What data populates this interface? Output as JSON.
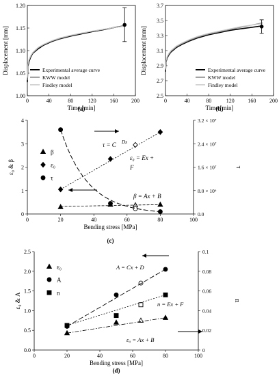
{
  "chart_data": [
    {
      "id": "a",
      "panel_label": "(a)",
      "type": "line",
      "xlabel": "Time [min]",
      "ylabel": "Displacement [mm]",
      "xlim": [
        0,
        200
      ],
      "ylim": [
        1.0,
        1.2
      ],
      "xticks": [
        0,
        40,
        80,
        120,
        160,
        200
      ],
      "yticks": [
        "1.00",
        "1.05",
        "1.10",
        "1.15",
        "1.20"
      ],
      "legend_position": "bottom-left",
      "series": [
        {
          "name": "Experimental average curve",
          "color": "#000000",
          "x": [
            0,
            1,
            3,
            6,
            10,
            20,
            30,
            45,
            60,
            80,
            100,
            120,
            140,
            160,
            180
          ],
          "y": [
            1.03,
            1.065,
            1.075,
            1.085,
            1.094,
            1.104,
            1.112,
            1.12,
            1.126,
            1.132,
            1.137,
            1.142,
            1.146,
            1.151,
            1.155
          ]
        },
        {
          "name": "KWW model",
          "color": "#8c8c8c",
          "x": [
            0,
            1,
            3,
            6,
            10,
            20,
            30,
            45,
            60,
            80,
            100,
            120,
            140,
            160,
            180
          ],
          "y": [
            1.035,
            1.068,
            1.078,
            1.087,
            1.095,
            1.106,
            1.113,
            1.121,
            1.127,
            1.133,
            1.138,
            1.143,
            1.147,
            1.151,
            1.155
          ]
        },
        {
          "name": "Findley model",
          "color": "#c8c8c8",
          "x": [
            0,
            1,
            3,
            6,
            10,
            20,
            30,
            45,
            60,
            80,
            100,
            120,
            140,
            160,
            180
          ],
          "y": [
            1.04,
            1.07,
            1.08,
            1.088,
            1.096,
            1.107,
            1.114,
            1.122,
            1.128,
            1.134,
            1.139,
            1.143,
            1.147,
            1.151,
            1.154
          ]
        }
      ],
      "endpoint": {
        "x": 180,
        "y": 1.157,
        "error_low": 1.12,
        "error_high": 1.195
      }
    },
    {
      "id": "b",
      "panel_label": "(b)",
      "type": "line",
      "xlabel": "Time [min]",
      "ylabel": "Displacement [mm]",
      "xlim": [
        0,
        200
      ],
      "ylim": [
        2.5,
        3.7
      ],
      "xticks": [
        0,
        40,
        80,
        120,
        160,
        200
      ],
      "yticks": [
        "2.5",
        "2.7",
        "2.9",
        "3.1",
        "3.3",
        "3.5",
        "3.7"
      ],
      "legend_position": "bottom-right",
      "series": [
        {
          "name": "Experimental average curve",
          "color": "#000000",
          "x": [
            0,
            1,
            3,
            6,
            10,
            20,
            30,
            45,
            60,
            80,
            100,
            120,
            140,
            160,
            180
          ],
          "y": [
            2.82,
            2.95,
            3.0,
            3.04,
            3.08,
            3.14,
            3.18,
            3.23,
            3.27,
            3.31,
            3.34,
            3.37,
            3.39,
            3.41,
            3.43
          ]
        },
        {
          "name": "KWW model",
          "color": "#8c8c8c",
          "x": [
            0,
            1,
            3,
            6,
            10,
            20,
            30,
            45,
            60,
            80,
            100,
            120,
            140,
            160,
            180
          ],
          "y": [
            2.84,
            2.96,
            3.01,
            3.05,
            3.09,
            3.15,
            3.19,
            3.24,
            3.28,
            3.32,
            3.35,
            3.38,
            3.41,
            3.44,
            3.47
          ]
        },
        {
          "name": "Findley model",
          "color": "#c8c8c8",
          "x": [
            0,
            1,
            3,
            6,
            10,
            20,
            30,
            45,
            60,
            80,
            100,
            120,
            140,
            160,
            180
          ],
          "y": [
            2.86,
            2.97,
            3.02,
            3.06,
            3.1,
            3.16,
            3.2,
            3.25,
            3.29,
            3.33,
            3.36,
            3.39,
            3.42,
            3.44,
            3.46
          ]
        }
      ],
      "endpoint": {
        "x": 178,
        "y": 3.42,
        "error_low": 3.33,
        "error_high": 3.51
      }
    },
    {
      "id": "c",
      "panel_label": "(c)",
      "type": "scatter",
      "xlabel": "Bending stress [MPa]",
      "ylabel_left": "ε0 & β",
      "ylabel_right": "τ",
      "xlim": [
        0,
        100
      ],
      "ylim_left": [
        0,
        4
      ],
      "ylim_right": [
        0,
        32000000
      ],
      "xticks": [
        0,
        20,
        40,
        60,
        80,
        100
      ],
      "yticks_left": [
        "0",
        "1",
        "2",
        "3",
        "4"
      ],
      "yticks_right": [
        "0.0",
        "8.0 × 10⁶",
        "1.6 × 10⁷",
        "2.4 × 10⁷",
        "3.2 × 10⁷"
      ],
      "legend": [
        "β",
        "ε0",
        "τ"
      ],
      "series": [
        {
          "name": "β",
          "marker": "triangle",
          "axis": "left",
          "x": [
            20,
            50,
            65,
            80
          ],
          "y": [
            0.3,
            0.4,
            0.38,
            0.4
          ],
          "open_index": 2
        },
        {
          "name": "ε0",
          "marker": "diamond",
          "axis": "left",
          "x": [
            20,
            50,
            65,
            80
          ],
          "y": [
            1.05,
            2.35,
            2.95,
            3.5
          ],
          "open_index": 2
        },
        {
          "name": "τ",
          "marker": "circle",
          "axis": "right",
          "x": [
            20,
            50,
            65,
            80
          ],
          "y": [
            28800000,
            3600000,
            1800000,
            800000
          ],
          "open_index": 2
        }
      ],
      "annotations": {
        "tau_eq": "τ = C",
        "tau_eq_sup": "Dx",
        "eps_eq_1": "ε0 = Ex +",
        "eps_eq_2": "F",
        "beta_eq": "β = Ax + B"
      }
    },
    {
      "id": "d",
      "panel_label": "(d)",
      "type": "scatter",
      "xlabel": "Bending stress [MPa]",
      "ylabel_left": "ε0 & A",
      "ylabel_right": "n",
      "xlim": [
        0,
        100
      ],
      "ylim_left": [
        0,
        2.5
      ],
      "ylim_right": [
        0,
        0.1
      ],
      "xticks": [
        0,
        20,
        40,
        60,
        80,
        100
      ],
      "yticks_left": [
        "0.0",
        "0.5",
        "1.0",
        "1.5",
        "2.0",
        "2.5"
      ],
      "yticks_right": [
        "0",
        "0.02",
        "0.04",
        "0.06",
        "0.08",
        "0.1"
      ],
      "legend": [
        "ε0",
        "A",
        "n"
      ],
      "series": [
        {
          "name": "ε0",
          "marker": "triangle",
          "axis": "left",
          "x": [
            20,
            50,
            65,
            80
          ],
          "y": [
            0.43,
            0.7,
            0.75,
            0.82
          ],
          "open_index": 2
        },
        {
          "name": "A",
          "marker": "circle",
          "axis": "left",
          "x": [
            20,
            50,
            65,
            80
          ],
          "y": [
            0.6,
            1.4,
            1.7,
            2.05
          ],
          "open_index": 2
        },
        {
          "name": "n",
          "marker": "square",
          "axis": "right",
          "x": [
            20,
            50,
            65,
            80
          ],
          "y": [
            0.025,
            0.035,
            0.046,
            0.056
          ],
          "open_index": 2
        }
      ],
      "annotations": {
        "a_eq": "A = Cx + D",
        "n_eq": "n = Ex + F",
        "eps_eq": "ε0 = Ax + B"
      }
    }
  ]
}
